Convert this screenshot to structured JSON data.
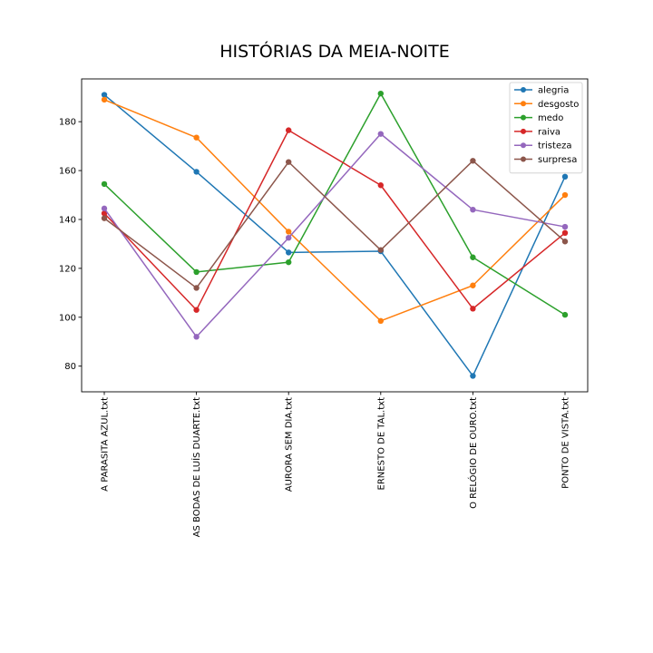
{
  "chart_data": {
    "type": "line",
    "title": "HISTÓRIAS DA MEIA-NOITE",
    "xlabel": "",
    "ylabel": "",
    "categories": [
      "A PARASITA AZUL.txt",
      "AS BODAS DE LUÍS DUARTE.txt",
      "AURORA SEM DIA.txt",
      "ERNESTO DE TAL.txt",
      "O RELÓGIO DE OURO.txt",
      "PONTO DE VISTA.txt"
    ],
    "yticks": [
      80,
      100,
      120,
      140,
      160,
      180
    ],
    "ylim": [
      69.5,
      197.5
    ],
    "grid": false,
    "legend_position": "upper right",
    "series": [
      {
        "name": "alegria",
        "color": "#1f77b4",
        "values": [
          191,
          159.5,
          126.5,
          127,
          76,
          157.5
        ]
      },
      {
        "name": "desgosto",
        "color": "#ff7f0e",
        "values": [
          189,
          173.5,
          135,
          98.5,
          113,
          150
        ]
      },
      {
        "name": "medo",
        "color": "#2ca02c",
        "values": [
          154.5,
          118.5,
          122.5,
          191.5,
          124.5,
          101
        ]
      },
      {
        "name": "raiva",
        "color": "#d62728",
        "values": [
          142.5,
          103,
          176.5,
          154,
          103.5,
          134.5
        ]
      },
      {
        "name": "tristeza",
        "color": "#9467bd",
        "values": [
          144.5,
          92,
          132.5,
          175,
          144,
          137
        ]
      },
      {
        "name": "surpresa",
        "color": "#8c564b",
        "values": [
          140.5,
          112,
          163.5,
          127.5,
          164,
          131
        ]
      }
    ]
  }
}
